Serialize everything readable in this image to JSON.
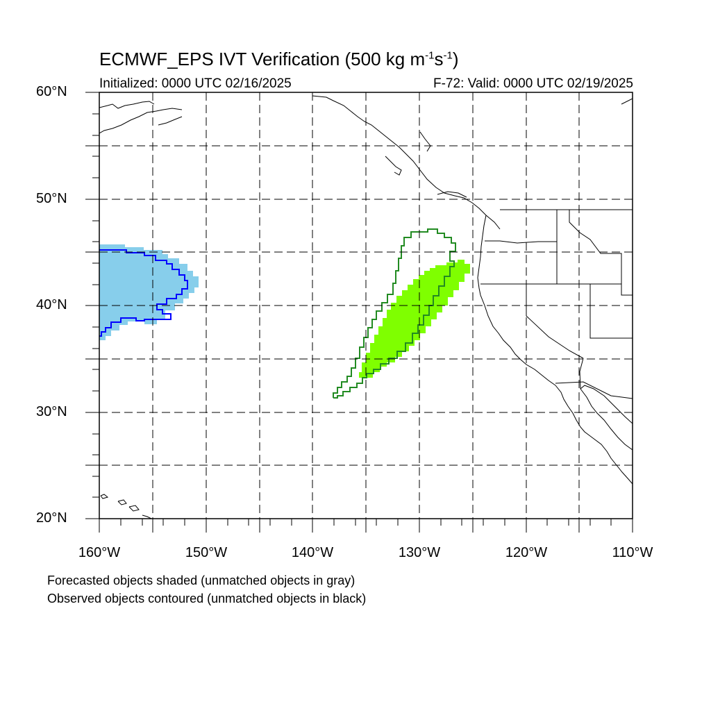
{
  "title_main": "ECMWF_EPS IVT Verification (500 kg m",
  "title_exp1": "-1",
  "title_mid": "s",
  "title_exp2": "-1",
  "title_end": ")",
  "initialized": "Initialized: 0000 UTC 02/16/2025",
  "valid": "F-72: Valid: 0000 UTC 02/19/2025",
  "lat_labels": [
    "60°N",
    "50°N",
    "40°N",
    "30°N",
    "20°N"
  ],
  "lon_labels": [
    "160°W",
    "150°W",
    "140°W",
    "130°W",
    "120°W",
    "110°W"
  ],
  "note_forecast": "Forecasted objects shaded (unmatched objects in gray)",
  "note_observed": "Observed objects contoured (unmatched objects in black)",
  "colors": {
    "forecast_blue": "#87ceeb",
    "observed_blue": "#0000ff",
    "forecast_green": "#7fff00",
    "observed_green": "#228b22",
    "coastline": "#000000"
  },
  "map_extent": {
    "lon": [
      -160,
      -110
    ],
    "lat": [
      20,
      60
    ]
  }
}
